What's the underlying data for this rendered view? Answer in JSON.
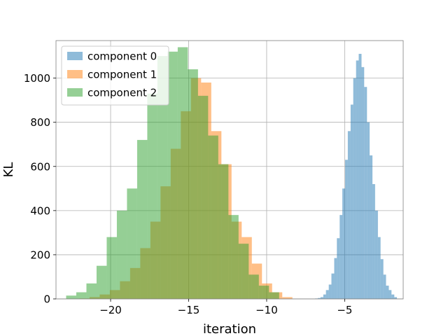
{
  "chart_data": {
    "type": "bar",
    "subtype": "overlapping histogram",
    "xlabel": "iteration",
    "ylabel": "KL",
    "xlim": [
      -23.5,
      -1.25
    ],
    "ylim": [
      0,
      1170
    ],
    "xticks": [
      -20,
      -15,
      -10,
      -5
    ],
    "xtick_labels": [
      "−20",
      "−15",
      "−10",
      "−5"
    ],
    "yticks": [
      0,
      200,
      400,
      600,
      800,
      1000
    ],
    "ytick_labels": [
      "0",
      "200",
      "400",
      "600",
      "800",
      "1000"
    ],
    "grid": true,
    "legend_position": "top-left",
    "series": [
      {
        "name": "component 0",
        "color": "#1f77b4",
        "alpha": 0.5,
        "bin_edges": [
          -6.9,
          -6.72,
          -6.55,
          -6.37,
          -6.2,
          -6.02,
          -5.85,
          -5.67,
          -5.5,
          -5.32,
          -5.15,
          -4.97,
          -4.8,
          -4.62,
          -4.45,
          -4.27,
          -4.1,
          -3.92,
          -3.75,
          -3.57,
          -3.4,
          -3.22,
          -3.05,
          -2.87,
          -2.7,
          -2.52,
          -2.35,
          -2.17,
          -2.0,
          -1.82,
          -1.65
        ],
        "counts": [
          2,
          4,
          8,
          20,
          40,
          65,
          115,
          185,
          275,
          380,
          500,
          630,
          760,
          880,
          1000,
          1080,
          1110,
          1050,
          960,
          800,
          650,
          520,
          400,
          280,
          180,
          110,
          60,
          40,
          20,
          8
        ]
      },
      {
        "name": "component 1",
        "color": "#ff7f0e",
        "alpha": 0.5,
        "bin_edges": [
          -22.0,
          -21.35,
          -20.7,
          -20.05,
          -19.4,
          -18.75,
          -18.1,
          -17.45,
          -16.8,
          -16.15,
          -15.5,
          -14.85,
          -14.2,
          -13.55,
          -12.9,
          -12.25,
          -11.6,
          -10.95,
          -10.3,
          -9.65,
          -9.0,
          -8.35
        ],
        "counts": [
          2,
          8,
          20,
          40,
          80,
          140,
          230,
          350,
          510,
          680,
          850,
          1000,
          980,
          760,
          610,
          350,
          280,
          160,
          70,
          30,
          8
        ]
      },
      {
        "name": "component 2",
        "color": "#2ca02c",
        "alpha": 0.5,
        "bin_edges": [
          -22.85,
          -22.2,
          -21.55,
          -20.9,
          -20.25,
          -19.6,
          -18.95,
          -18.3,
          -17.65,
          -17.0,
          -16.35,
          -15.7,
          -15.05,
          -14.4,
          -13.75,
          -13.1,
          -12.45,
          -11.8,
          -11.15,
          -10.5,
          -9.85,
          -9.2
        ],
        "counts": [
          15,
          30,
          70,
          150,
          280,
          400,
          500,
          720,
          930,
          1100,
          1120,
          1140,
          1040,
          920,
          740,
          610,
          380,
          250,
          110,
          60,
          30
        ]
      }
    ]
  }
}
